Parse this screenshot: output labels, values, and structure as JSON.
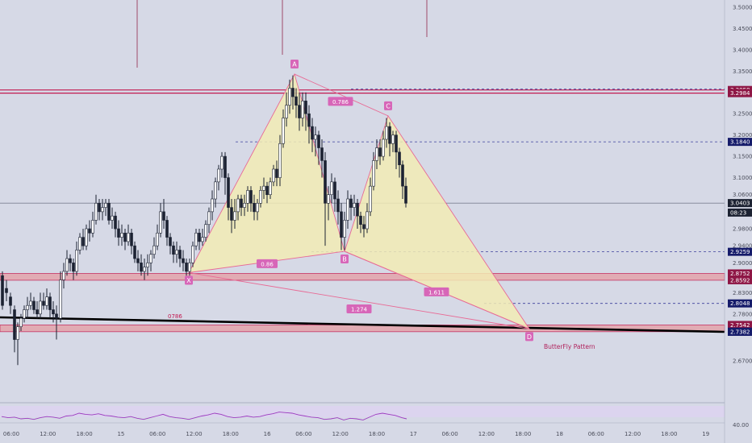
{
  "colors": {
    "background": "#d6d9e6",
    "candle": "#1c2232",
    "pattern_fill": "#f2ebb4",
    "pattern_line": "#e86a95",
    "point_label": "#d766b8",
    "level_band": "#e3a3ab",
    "level_line": "#c2184f",
    "dashed_line": "#3b3f9c",
    "trendline": "#000000",
    "rsi_line": "#9c3bbf",
    "rsi_band": "#ddd3ef",
    "price_tag": "#151b6a",
    "last_price_tag": "#1c2232"
  },
  "chart_data": {
    "type": "candlestick",
    "title": "",
    "pattern_name": "ButterFly Pattern",
    "ylim": [
      2.62,
      3.52
    ],
    "y_ticks": [
      "3.5000",
      "3.4500",
      "3.4000",
      "3.3500",
      "3.2500",
      "3.2000",
      "3.1500",
      "3.1000",
      "3.0600",
      "2.9800",
      "2.9400",
      "2.9000",
      "2.8300",
      "2.7800",
      "2.6700"
    ],
    "x_tick_labels": [
      "06:00",
      "12:00",
      "18:00",
      "15",
      "06:00",
      "12:00",
      "18:00",
      "16",
      "06:00",
      "12:00",
      "18:00",
      "17",
      "06:00",
      "12:00",
      "18:00",
      "18",
      "06:00",
      "12:00",
      "18:00",
      "19"
    ],
    "price_tags": [
      {
        "value": 3.3058,
        "text": "3.3058",
        "style": "level"
      },
      {
        "value": 3.2984,
        "text": "3.2984",
        "style": "level"
      },
      {
        "value": 3.184,
        "text": "3.1840",
        "style": "level"
      },
      {
        "value": 3.0403,
        "text": "3.0403",
        "style": "last"
      },
      {
        "value": 3.018,
        "text": "08:23",
        "style": "last"
      },
      {
        "value": 2.9259,
        "text": "2.9259",
        "style": "level"
      },
      {
        "value": 2.8752,
        "text": "2.8752",
        "style": "level"
      },
      {
        "value": 2.8592,
        "text": "2.8592",
        "style": "level"
      },
      {
        "value": 2.8048,
        "text": "2.8048",
        "style": "level"
      },
      {
        "value": 2.7542,
        "text": "2.7542",
        "style": "level"
      },
      {
        "value": 2.7384,
        "text": "2.7384",
        "style": "level"
      },
      {
        "value": 2.7382,
        "text": "2.7382",
        "style": "level"
      }
    ],
    "pattern_points": [
      {
        "label": "X",
        "x": 234,
        "price": 2.877
      },
      {
        "label": "A",
        "x": 365,
        "price": 3.343
      },
      {
        "label": "B",
        "x": 427,
        "price": 2.927
      },
      {
        "label": "C",
        "x": 481,
        "price": 3.245
      },
      {
        "label": "D",
        "x": 656,
        "price": 2.745
      }
    ],
    "ratios": [
      {
        "text": "0.786",
        "x": 422,
        "price": 3.278
      },
      {
        "text": "0.86",
        "x": 331,
        "price": 2.897
      },
      {
        "text": "1.611",
        "x": 541,
        "price": 2.831
      },
      {
        "text": "1.274",
        "x": 445,
        "price": 2.791
      }
    ],
    "annotation_0786": "0786",
    "candles": [
      [
        3,
        2.87,
        2.8,
        2.88,
        2.79
      ],
      [
        8,
        2.84,
        2.83,
        2.86,
        2.81
      ],
      [
        13,
        2.82,
        2.8,
        2.83,
        2.78
      ],
      [
        18,
        2.79,
        2.72,
        2.8,
        2.69
      ],
      [
        22,
        2.72,
        2.75,
        2.76,
        2.66
      ],
      [
        26,
        2.75,
        2.77,
        2.78,
        2.74
      ],
      [
        30,
        2.77,
        2.79,
        2.8,
        2.76
      ],
      [
        34,
        2.79,
        2.8,
        2.82,
        2.77
      ],
      [
        38,
        2.8,
        2.81,
        2.83,
        2.79
      ],
      [
        42,
        2.81,
        2.79,
        2.82,
        2.78
      ],
      [
        46,
        2.79,
        2.78,
        2.81,
        2.77
      ],
      [
        50,
        2.78,
        2.81,
        2.83,
        2.77
      ],
      [
        54,
        2.81,
        2.8,
        2.83,
        2.79
      ],
      [
        58,
        2.8,
        2.82,
        2.84,
        2.79
      ],
      [
        62,
        2.82,
        2.79,
        2.83,
        2.77
      ],
      [
        66,
        2.79,
        2.78,
        2.81,
        2.76
      ],
      [
        70,
        2.78,
        2.77,
        2.8,
        2.72
      ],
      [
        75,
        2.77,
        2.86,
        2.88,
        2.76
      ],
      [
        79,
        2.86,
        2.88,
        2.9,
        2.84
      ],
      [
        83,
        2.88,
        2.91,
        2.93,
        2.87
      ],
      [
        87,
        2.91,
        2.9,
        2.92,
        2.88
      ],
      [
        91,
        2.9,
        2.88,
        2.91,
        2.86
      ],
      [
        95,
        2.88,
        2.93,
        2.95,
        2.87
      ],
      [
        99,
        2.93,
        2.96,
        2.97,
        2.92
      ],
      [
        103,
        2.96,
        2.94,
        2.98,
        2.93
      ],
      [
        107,
        2.94,
        2.98,
        2.99,
        2.93
      ],
      [
        111,
        2.98,
        2.97,
        3.0,
        2.95
      ],
      [
        115,
        2.97,
        3.0,
        3.02,
        2.96
      ],
      [
        119,
        3.0,
        3.04,
        3.06,
        2.99
      ],
      [
        123,
        3.04,
        3.02,
        3.05,
        3.0
      ],
      [
        127,
        3.02,
        3.03,
        3.05,
        3.0
      ],
      [
        131,
        3.03,
        3.04,
        3.05,
        3.01
      ],
      [
        135,
        3.04,
        3.0,
        3.05,
        2.99
      ],
      [
        139,
        3.0,
        3.01,
        3.03,
        2.98
      ],
      [
        143,
        3.01,
        2.98,
        3.02,
        2.96
      ],
      [
        147,
        2.98,
        2.96,
        3.0,
        2.94
      ],
      [
        151,
        2.96,
        2.97,
        2.99,
        2.94
      ],
      [
        155,
        2.97,
        2.95,
        2.98,
        2.93
      ],
      [
        159,
        2.95,
        2.97,
        2.99,
        2.94
      ],
      [
        163,
        2.97,
        2.94,
        2.98,
        2.92
      ],
      [
        167,
        2.94,
        2.91,
        2.95,
        2.9
      ],
      [
        171,
        2.91,
        2.9,
        2.93,
        2.88
      ],
      [
        175,
        2.9,
        2.88,
        2.92,
        2.87
      ],
      [
        179,
        2.88,
        2.89,
        2.91,
        2.86
      ],
      [
        183,
        2.89,
        2.9,
        2.92,
        2.87
      ],
      [
        187,
        2.9,
        2.92,
        2.93,
        2.88
      ],
      [
        191,
        2.92,
        2.94,
        2.96,
        2.91
      ],
      [
        195,
        2.94,
        2.97,
        2.99,
        2.93
      ],
      [
        199,
        2.97,
        3.02,
        3.04,
        2.96
      ],
      [
        203,
        3.02,
        3.0,
        3.05,
        2.98
      ],
      [
        207,
        3.0,
        2.96,
        3.01,
        2.94
      ],
      [
        211,
        2.96,
        2.94,
        2.97,
        2.92
      ],
      [
        215,
        2.94,
        2.92,
        2.95,
        2.9
      ],
      [
        219,
        2.92,
        2.93,
        2.95,
        2.9
      ],
      [
        223,
        2.93,
        2.91,
        2.94,
        2.89
      ],
      [
        227,
        2.91,
        2.9,
        2.93,
        2.88
      ],
      [
        231,
        2.9,
        2.88,
        2.91,
        2.87
      ],
      [
        235,
        2.88,
        2.9,
        2.91,
        2.87
      ],
      [
        239,
        2.9,
        2.94,
        2.95,
        2.89
      ],
      [
        243,
        2.94,
        2.97,
        2.98,
        2.93
      ],
      [
        247,
        2.97,
        2.95,
        2.98,
        2.93
      ],
      [
        251,
        2.95,
        2.96,
        2.98,
        2.94
      ],
      [
        255,
        2.96,
        2.99,
        3.0,
        2.95
      ],
      [
        259,
        2.99,
        3.02,
        3.03,
        2.97
      ],
      [
        263,
        3.02,
        3.05,
        3.07,
        3.0
      ],
      [
        267,
        3.05,
        3.09,
        3.1,
        3.03
      ],
      [
        271,
        3.09,
        3.12,
        3.13,
        3.07
      ],
      [
        275,
        3.12,
        3.15,
        3.16,
        3.1
      ],
      [
        279,
        3.15,
        3.1,
        3.16,
        3.06
      ],
      [
        283,
        3.1,
        3.03,
        3.11,
        3.0
      ],
      [
        287,
        3.03,
        3.0,
        3.05,
        2.97
      ],
      [
        291,
        3.0,
        3.02,
        3.05,
        2.98
      ],
      [
        295,
        3.02,
        3.05,
        3.06,
        3.0
      ],
      [
        299,
        3.05,
        3.03,
        3.06,
        3.01
      ],
      [
        303,
        3.03,
        3.04,
        3.06,
        3.01
      ],
      [
        307,
        3.04,
        3.07,
        3.08,
        3.02
      ],
      [
        311,
        3.07,
        3.04,
        3.08,
        3.02
      ],
      [
        315,
        3.04,
        3.02,
        3.06,
        3.0
      ],
      [
        319,
        3.02,
        3.04,
        3.05,
        3.0
      ],
      [
        323,
        3.04,
        3.07,
        3.08,
        3.03
      ],
      [
        327,
        3.07,
        3.08,
        3.1,
        3.05
      ],
      [
        331,
        3.08,
        3.06,
        3.09,
        3.04
      ],
      [
        335,
        3.06,
        3.09,
        3.1,
        3.05
      ],
      [
        339,
        3.09,
        3.12,
        3.13,
        3.08
      ],
      [
        343,
        3.12,
        3.1,
        3.14,
        3.08
      ],
      [
        347,
        3.1,
        3.18,
        3.2,
        3.08
      ],
      [
        351,
        3.18,
        3.24,
        3.26,
        3.17
      ],
      [
        355,
        3.24,
        3.27,
        3.3,
        3.22
      ],
      [
        359,
        3.27,
        3.31,
        3.33,
        3.25
      ],
      [
        363,
        3.31,
        3.29,
        3.34,
        3.26
      ],
      [
        367,
        3.29,
        3.27,
        3.31,
        3.24
      ],
      [
        371,
        3.27,
        3.24,
        3.3,
        3.21
      ],
      [
        375,
        3.24,
        3.28,
        3.3,
        3.22
      ],
      [
        379,
        3.28,
        3.25,
        3.3,
        3.21
      ],
      [
        383,
        3.25,
        3.22,
        3.27,
        3.18
      ],
      [
        387,
        3.22,
        3.19,
        3.24,
        3.16
      ],
      [
        391,
        3.19,
        3.2,
        3.22,
        3.15
      ],
      [
        395,
        3.2,
        3.17,
        3.21,
        3.13
      ],
      [
        399,
        3.17,
        3.14,
        3.19,
        3.1
      ],
      [
        403,
        3.14,
        3.04,
        3.16,
        2.94
      ],
      [
        407,
        3.04,
        3.06,
        3.08,
        3.0
      ],
      [
        411,
        3.06,
        3.09,
        3.11,
        3.04
      ],
      [
        415,
        3.09,
        3.05,
        3.1,
        3.02
      ],
      [
        419,
        3.05,
        3.02,
        3.07,
        2.99
      ],
      [
        423,
        3.02,
        2.96,
        3.04,
        2.93
      ],
      [
        427,
        2.96,
        3.0,
        3.02,
        2.93
      ],
      [
        431,
        3.0,
        3.05,
        3.07,
        2.98
      ],
      [
        435,
        3.05,
        3.03,
        3.06,
        3.0
      ],
      [
        439,
        3.03,
        3.04,
        3.06,
        3.01
      ],
      [
        443,
        3.04,
        3.01,
        3.05,
        2.98
      ],
      [
        447,
        3.01,
        2.99,
        3.02,
        2.97
      ],
      [
        451,
        2.99,
        2.98,
        3.01,
        2.96
      ],
      [
        455,
        2.98,
        3.02,
        3.04,
        2.97
      ],
      [
        459,
        3.02,
        3.08,
        3.1,
        3.01
      ],
      [
        463,
        3.08,
        3.14,
        3.16,
        3.07
      ],
      [
        467,
        3.14,
        3.17,
        3.19,
        3.12
      ],
      [
        471,
        3.17,
        3.15,
        3.19,
        3.13
      ],
      [
        475,
        3.15,
        3.19,
        3.21,
        3.14
      ],
      [
        479,
        3.19,
        3.22,
        3.24,
        3.17
      ],
      [
        483,
        3.22,
        3.18,
        3.23,
        3.15
      ],
      [
        487,
        3.18,
        3.2,
        3.21,
        3.16
      ],
      [
        491,
        3.2,
        3.16,
        3.21,
        3.12
      ],
      [
        495,
        3.16,
        3.13,
        3.17,
        3.1
      ],
      [
        499,
        3.13,
        3.08,
        3.14,
        3.05
      ],
      [
        503,
        3.08,
        3.04,
        3.1,
        3.03
      ]
    ],
    "rsi": [
      [
        2,
        54
      ],
      [
        10,
        52
      ],
      [
        18,
        53
      ],
      [
        26,
        50
      ],
      [
        34,
        51
      ],
      [
        42,
        49
      ],
      [
        50,
        52
      ],
      [
        58,
        54
      ],
      [
        66,
        53
      ],
      [
        74,
        51
      ],
      [
        82,
        55
      ],
      [
        90,
        56
      ],
      [
        98,
        60
      ],
      [
        106,
        58
      ],
      [
        114,
        57
      ],
      [
        122,
        59
      ],
      [
        130,
        56
      ],
      [
        138,
        55
      ],
      [
        146,
        53
      ],
      [
        154,
        52
      ],
      [
        162,
        54
      ],
      [
        170,
        51
      ],
      [
        178,
        49
      ],
      [
        186,
        52
      ],
      [
        194,
        55
      ],
      [
        202,
        58
      ],
      [
        210,
        54
      ],
      [
        218,
        52
      ],
      [
        226,
        51
      ],
      [
        234,
        49
      ],
      [
        242,
        52
      ],
      [
        250,
        55
      ],
      [
        258,
        57
      ],
      [
        266,
        60
      ],
      [
        274,
        58
      ],
      [
        282,
        54
      ],
      [
        290,
        52
      ],
      [
        298,
        53
      ],
      [
        306,
        55
      ],
      [
        314,
        53
      ],
      [
        322,
        54
      ],
      [
        330,
        57
      ],
      [
        338,
        59
      ],
      [
        346,
        62
      ],
      [
        354,
        61
      ],
      [
        362,
        60
      ],
      [
        370,
        57
      ],
      [
        378,
        55
      ],
      [
        386,
        53
      ],
      [
        394,
        52
      ],
      [
        402,
        49
      ],
      [
        410,
        50
      ],
      [
        418,
        52
      ],
      [
        426,
        48
      ],
      [
        434,
        51
      ],
      [
        442,
        50
      ],
      [
        450,
        48
      ],
      [
        458,
        53
      ],
      [
        466,
        58
      ],
      [
        474,
        60
      ],
      [
        482,
        58
      ],
      [
        490,
        56
      ],
      [
        498,
        52
      ],
      [
        504,
        50
      ]
    ],
    "rsi_tick": "40.00"
  }
}
